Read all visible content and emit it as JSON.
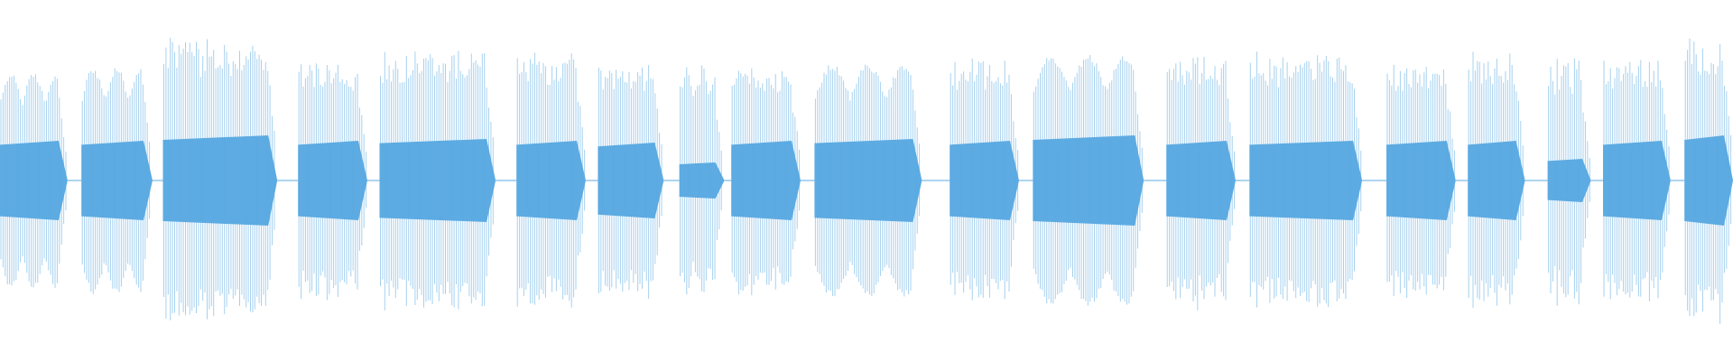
{
  "waveform": {
    "colors": {
      "background": "#ffffff",
      "core": "#5dabe2",
      "peaks": "#5dabe2",
      "peak_opacity": 0.55
    },
    "segments": [
      {
        "start": 0.0,
        "end": 0.039,
        "profile": "beating",
        "core": 0.22,
        "peak": 0.6
      },
      {
        "start": 0.047,
        "end": 0.088,
        "profile": "beating",
        "core": 0.22,
        "peak": 0.63
      },
      {
        "start": 0.094,
        "end": 0.16,
        "profile": "dense",
        "core": 0.25,
        "peak": 0.8
      },
      {
        "start": 0.172,
        "end": 0.212,
        "profile": "dense",
        "core": 0.22,
        "peak": 0.68
      },
      {
        "start": 0.219,
        "end": 0.286,
        "profile": "dense",
        "core": 0.23,
        "peak": 0.74
      },
      {
        "start": 0.298,
        "end": 0.338,
        "profile": "dense",
        "core": 0.22,
        "peak": 0.72
      },
      {
        "start": 0.345,
        "end": 0.383,
        "profile": "dense",
        "core": 0.21,
        "peak": 0.66
      },
      {
        "start": 0.392,
        "end": 0.418,
        "profile": "dense",
        "core": 0.1,
        "peak": 0.66
      },
      {
        "start": 0.422,
        "end": 0.462,
        "profile": "dense",
        "core": 0.22,
        "peak": 0.64
      },
      {
        "start": 0.47,
        "end": 0.532,
        "profile": "beating",
        "core": 0.23,
        "peak": 0.65
      },
      {
        "start": 0.548,
        "end": 0.588,
        "profile": "dense",
        "core": 0.22,
        "peak": 0.68
      },
      {
        "start": 0.596,
        "end": 0.66,
        "profile": "beating",
        "core": 0.25,
        "peak": 0.7
      },
      {
        "start": 0.673,
        "end": 0.713,
        "profile": "dense",
        "core": 0.22,
        "peak": 0.72
      },
      {
        "start": 0.721,
        "end": 0.786,
        "profile": "dense",
        "core": 0.22,
        "peak": 0.72
      },
      {
        "start": 0.8,
        "end": 0.84,
        "profile": "dense",
        "core": 0.22,
        "peak": 0.68
      },
      {
        "start": 0.847,
        "end": 0.88,
        "profile": "dense",
        "core": 0.22,
        "peak": 0.72
      },
      {
        "start": 0.893,
        "end": 0.918,
        "profile": "dense",
        "core": 0.12,
        "peak": 0.7
      },
      {
        "start": 0.925,
        "end": 0.964,
        "profile": "dense",
        "core": 0.22,
        "peak": 0.69
      },
      {
        "start": 0.972,
        "end": 1.0,
        "profile": "dense",
        "core": 0.25,
        "peak": 0.8
      }
    ]
  }
}
